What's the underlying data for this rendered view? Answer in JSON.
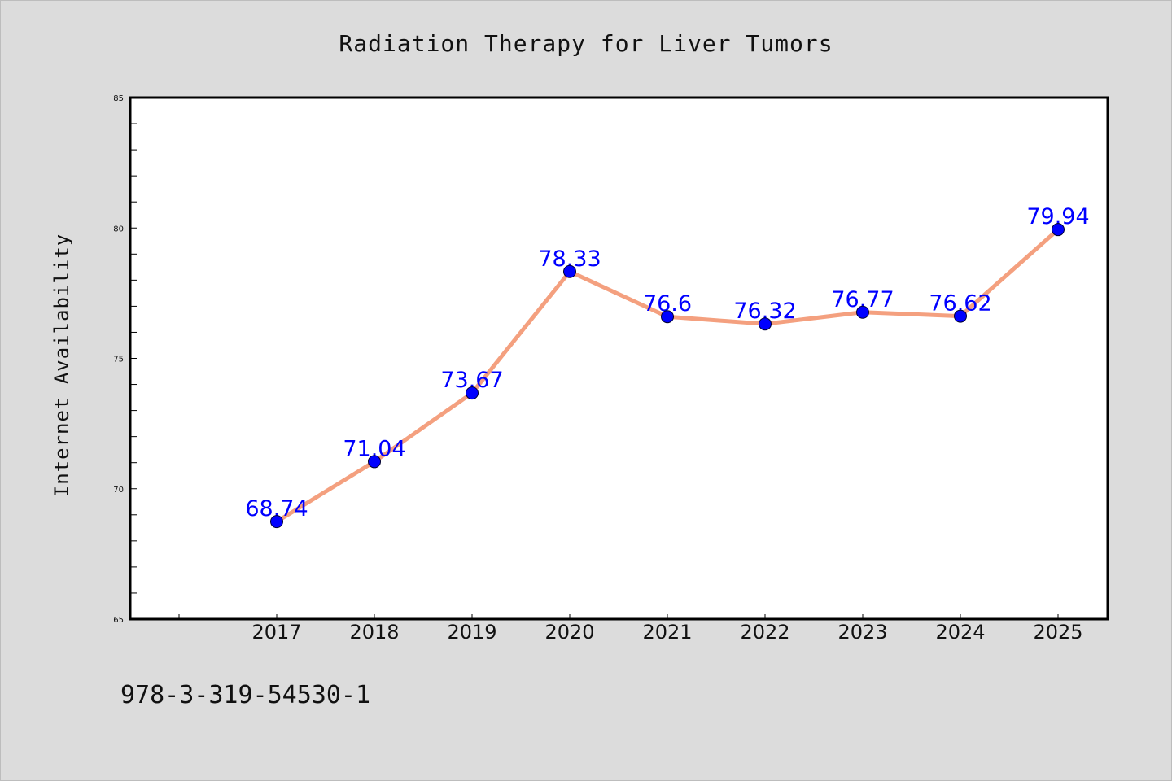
{
  "chart_data": {
    "type": "line",
    "title": "Radiation Therapy for Liver Tumors",
    "xlabel": "",
    "ylabel": "Internet Availability",
    "categories": [
      "2017",
      "2018",
      "2019",
      "2020",
      "2021",
      "2022",
      "2023",
      "2024",
      "2025"
    ],
    "series": [
      {
        "values": [
          68.74,
          71.04,
          73.67,
          78.33,
          76.6,
          76.32,
          76.77,
          76.62,
          79.94
        ],
        "data_labels": [
          "68.74",
          "71.04",
          "73.67",
          "78.33",
          "76.6",
          "76.32",
          "76.77",
          "76.62",
          "79.94"
        ]
      }
    ],
    "ylim": [
      65,
      85
    ],
    "yticks": [
      "65",
      "70",
      "75",
      "80",
      "85"
    ],
    "grid": false,
    "legend": "none",
    "colors": {
      "line": "#f4a07f",
      "marker": "#0000ff",
      "label": "#0000ff",
      "plot_bg": "#ffffff",
      "page_bg": "#dcdcdc"
    }
  },
  "footnote": "978-3-319-54530-1"
}
